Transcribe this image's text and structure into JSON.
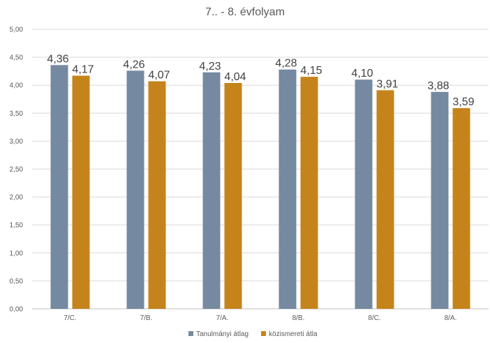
{
  "chart_data": {
    "type": "bar",
    "title": "7.. - 8. évfolyam",
    "xlabel": "",
    "ylabel": "",
    "categories": [
      "7/C.",
      "7/B.",
      "7/A.",
      "8/B.",
      "8/C.",
      "8/A."
    ],
    "series": [
      {
        "name": "Tanulmányi átlag",
        "color": "#758aa0",
        "values": [
          4.36,
          4.26,
          4.23,
          4.28,
          4.1,
          3.88
        ],
        "labels": [
          "4,36",
          "4,26",
          "4,23",
          "4,28",
          "4,10",
          "3,88"
        ]
      },
      {
        "name": "közismereti átla",
        "color": "#c5841b",
        "values": [
          4.17,
          4.07,
          4.04,
          4.15,
          3.91,
          3.59
        ],
        "labels": [
          "4,17",
          "4,07",
          "4,04",
          "4,15",
          "3,91",
          "3,59"
        ]
      }
    ],
    "ylim": [
      0,
      5
    ],
    "yticks": [
      "0,00",
      "0,50",
      "1,00",
      "1,50",
      "2,00",
      "2,50",
      "3,00",
      "3,50",
      "4,00",
      "4,50",
      "5,00"
    ],
    "grid": true,
    "legend_position": "bottom"
  }
}
